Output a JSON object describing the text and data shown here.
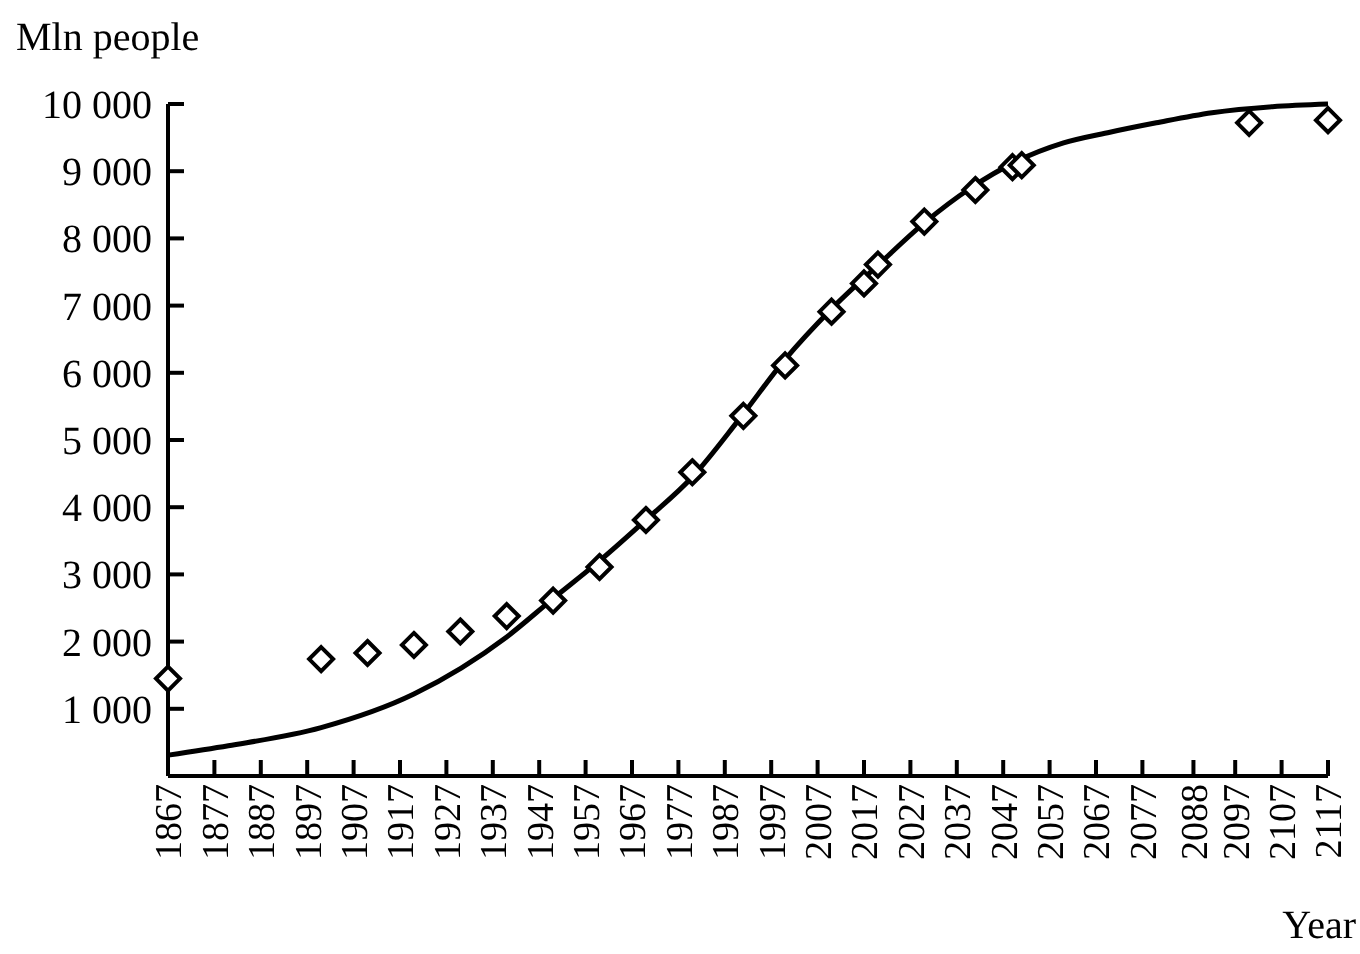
{
  "chart_data": {
    "type": "scatter",
    "ylabel": "Mln people",
    "xlabel": "Year",
    "xlim": [
      1867,
      2117
    ],
    "xticks": [
      1867,
      1877,
      1887,
      1897,
      1907,
      1917,
      1927,
      1937,
      1947,
      1957,
      1967,
      1977,
      1987,
      1997,
      2007,
      2017,
      2027,
      2037,
      2047,
      2057,
      2067,
      2077,
      2088,
      2097,
      2107,
      2117
    ],
    "ylim": [
      0,
      10000
    ],
    "yticks": [
      {
        "value": 1000,
        "label": "1 000"
      },
      {
        "value": 2000,
        "label": "2 000"
      },
      {
        "value": 3000,
        "label": "3 000"
      },
      {
        "value": 4000,
        "label": "4 000"
      },
      {
        "value": 5000,
        "label": "5 000"
      },
      {
        "value": 6000,
        "label": "6 000"
      },
      {
        "value": 7000,
        "label": "7 000"
      },
      {
        "value": 8000,
        "label": "8 000"
      },
      {
        "value": 9000,
        "label": "9 000"
      },
      {
        "value": 10000,
        "label": "10 000"
      }
    ],
    "grid": false,
    "series": [
      {
        "type": "line",
        "color": "#000000",
        "marker": "none",
        "line_style": "solid",
        "x": [
          1867,
          1880,
          1900,
          1920,
          1940,
          1950,
          1960,
          1970,
          1980,
          1990,
          2000,
          2010,
          2020,
          2030,
          2040,
          2050,
          2060,
          2070,
          2080,
          2092,
          2105,
          2117
        ],
        "values": [
          310,
          450,
          720,
          1220,
          2070,
          2640,
          3200,
          3810,
          4450,
          5300,
          6200,
          6950,
          7600,
          8230,
          8750,
          9150,
          9420,
          9580,
          9720,
          9870,
          9960,
          10000
        ]
      },
      {
        "color": "#000000",
        "marker": "diamond",
        "x": [
          1867,
          1900,
          1910,
          1920,
          1930,
          1940,
          1950,
          1960,
          1970,
          1980,
          1991,
          2000,
          2010,
          2017,
          2020,
          2030,
          2041,
          2049,
          2051,
          2100,
          2117
        ],
        "values": [
          1450,
          1740,
          1830,
          1950,
          2150,
          2380,
          2610,
          3110,
          3810,
          4520,
          5360,
          6110,
          6910,
          7330,
          7610,
          8250,
          8720,
          9060,
          9090,
          9720,
          9760
        ]
      }
    ]
  }
}
